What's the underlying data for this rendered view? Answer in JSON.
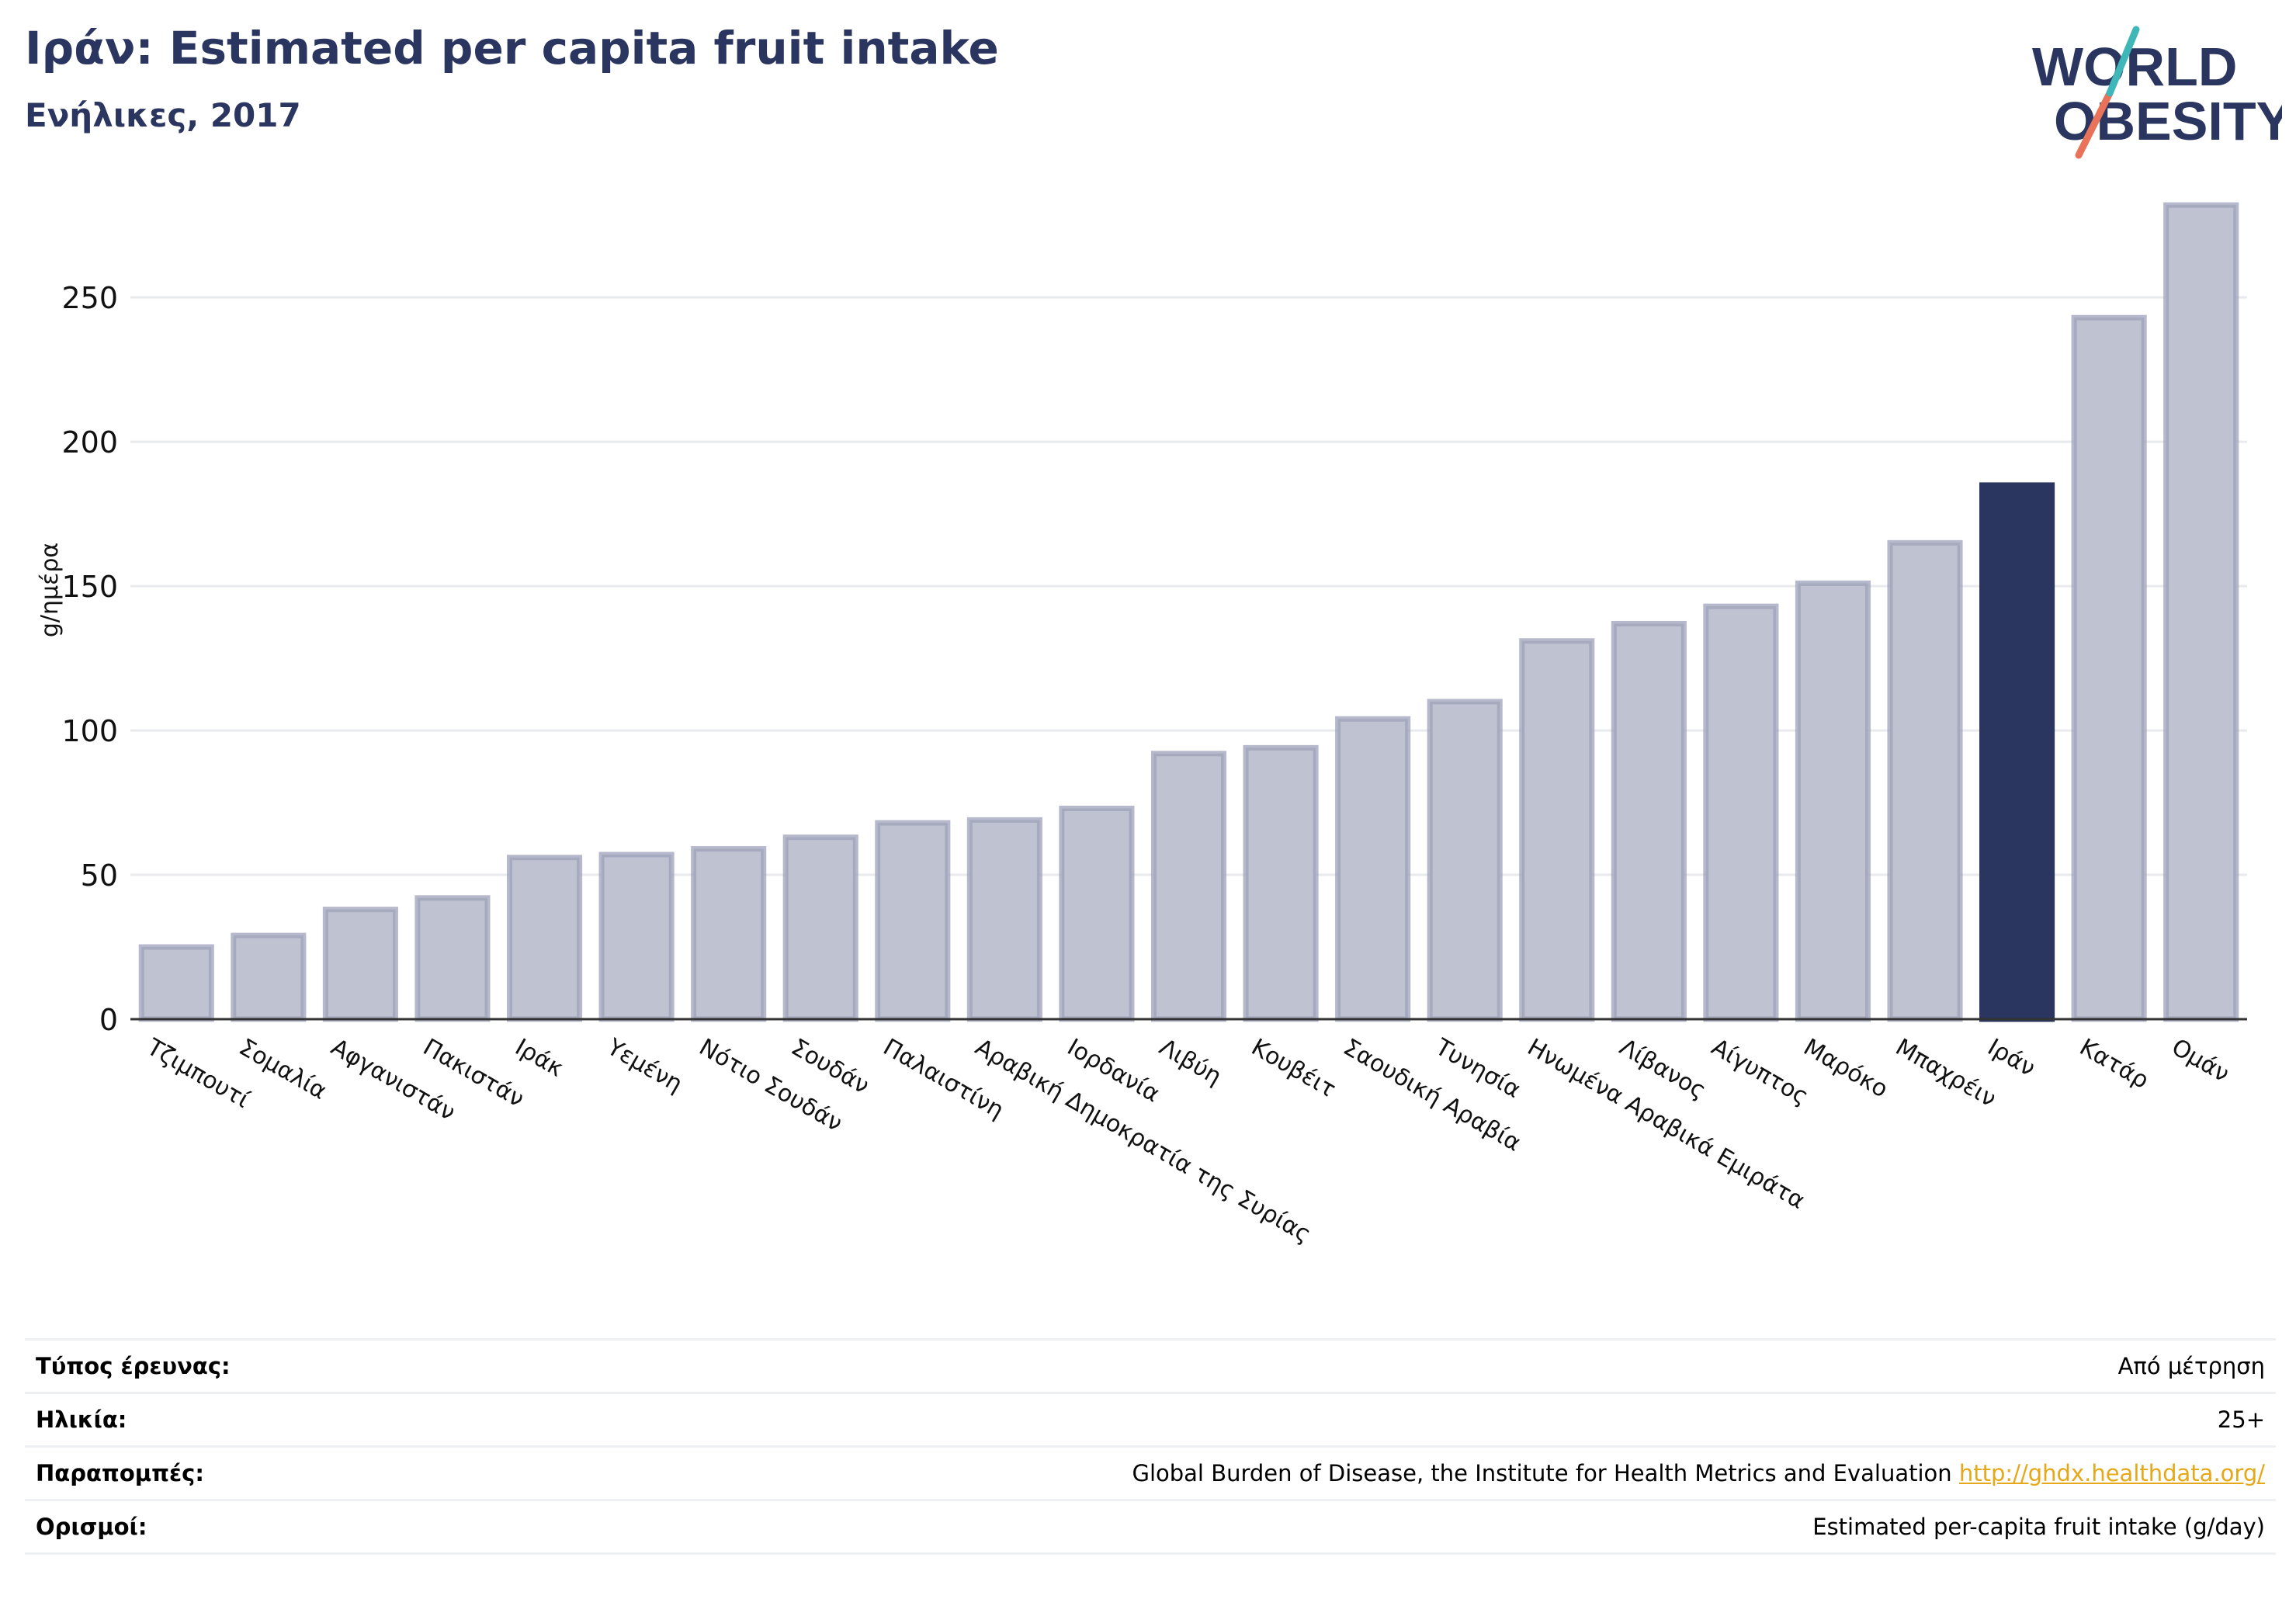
{
  "header": {
    "title": "Ιράν: Estimated per capita fruit intake",
    "subtitle": "Ενήλικες, 2017",
    "logo_line1": "WORLD",
    "logo_line2": "OBESITY"
  },
  "chart_data": {
    "type": "bar",
    "ylabel": "g/ημέρα",
    "ylim": [
      0,
      285
    ],
    "yticks": [
      0,
      50,
      100,
      150,
      200,
      250
    ],
    "grid": true,
    "highlight": "Ιράν",
    "colors": {
      "bar": "#bfc2d0",
      "bar_edge": "#9da2ba",
      "highlight": "#2a3560",
      "grid": "#e8eaee",
      "axis": "#333333"
    },
    "categories": [
      "Τζιμπουτί",
      "Σομαλία",
      "Αφγανιστάν",
      "Πακιστάν",
      "Ιράκ",
      "Υεμένη",
      "Νότιο Σουδάν",
      "Σουδάν",
      "Παλαιστίνη",
      "Αραβική Δημοκρατία της Συρίας",
      "Ιορδανία",
      "Λιβύη",
      "Κουβέιτ",
      "Σαουδική Αραβία",
      "Τυνησία",
      "Ηνωμένα Αραβικά Εμιράτα",
      "Λίβανος",
      "Αίγυπτος",
      "Μαρόκο",
      "Μπαχρέιν",
      "Ιράν",
      "Κατάρ",
      "Ομάν"
    ],
    "values": [
      25,
      29,
      38,
      42,
      56,
      57,
      59,
      63,
      68,
      69,
      73,
      92,
      94,
      104,
      110,
      131,
      137,
      143,
      151,
      165,
      185,
      243,
      282
    ]
  },
  "meta": {
    "rows": [
      {
        "label": "Τύπος έρευνας:",
        "value": "Από μέτρηση"
      },
      {
        "label": "Ηλικία:",
        "value": "25+"
      },
      {
        "label": "Παραπομπές:",
        "value": "Global Burden of Disease, the Institute for Health Metrics and Evaluation ",
        "link": "http://ghdx.healthdata.org/"
      },
      {
        "label": "Ορισμοί:",
        "value": "Estimated per-capita fruit intake (g/day)"
      }
    ]
  }
}
